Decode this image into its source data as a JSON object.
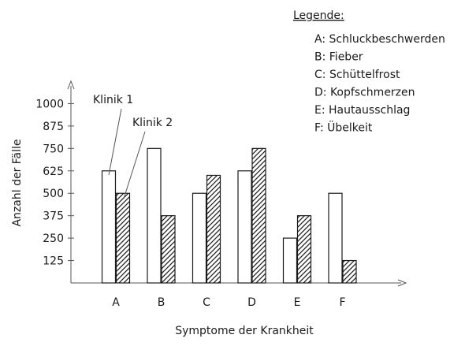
{
  "chart_data": {
    "type": "bar",
    "title": "",
    "xlabel": "Symptome der Krankheit",
    "ylabel": "Anzahl der Fälle",
    "categories": [
      "A",
      "B",
      "C",
      "D",
      "E",
      "F"
    ],
    "series": [
      {
        "name": "Klinik 1",
        "pattern": "none",
        "values": [
          625,
          750,
          500,
          625,
          250,
          500
        ]
      },
      {
        "name": "Klinik 2",
        "pattern": "diagonal-hatch",
        "values": [
          500,
          375,
          600,
          750,
          375,
          125
        ]
      }
    ],
    "yticks": [
      125,
      250,
      375,
      500,
      625,
      750,
      875,
      1000
    ],
    "ylim": [
      0,
      1125
    ],
    "grid": false,
    "legend": {
      "title": "Legende:",
      "placement": "top-right",
      "items": [
        "A: Schluckbeschwerden",
        "B: Fieber",
        "C: Schüttelfrost",
        "D: Kopfschmerzen",
        "E: Hautausschlag",
        "F: Übelkeit"
      ]
    }
  },
  "colors": {
    "axis": "#555555",
    "bar_fill": "#ffffff",
    "bar_stroke": "#1a1a1a",
    "hatch": "#1a1a1a"
  }
}
